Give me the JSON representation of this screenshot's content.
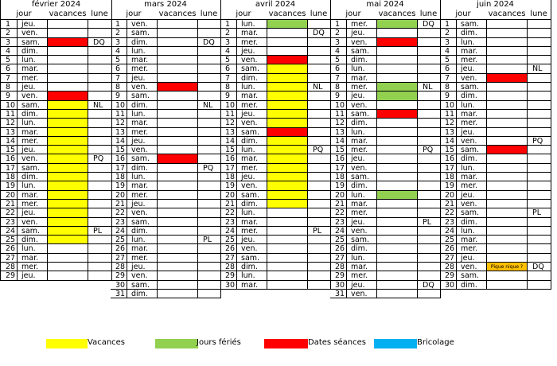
{
  "headers": {
    "jour": "jour",
    "vacances": "vacances",
    "lune": "lune"
  },
  "colors": {
    "vacances": "#ffff00",
    "feries": "#92d050",
    "seances": "#ff0000",
    "bricolage": "#00b0f0",
    "pique": "#ffc000"
  },
  "legend": [
    {
      "label": "Vacances",
      "color": "#ffff00"
    },
    {
      "label": "Jours fériés",
      "color": "#92d050"
    },
    {
      "label": "Dates séances",
      "color": "#ff0000"
    },
    {
      "label": "Bricolage",
      "color": "#00b0f0"
    }
  ],
  "months": [
    {
      "title": "février 2024",
      "rows": [
        {
          "n": "1",
          "d": "jeu.",
          "v": "",
          "l": ""
        },
        {
          "n": "2",
          "d": "ven.",
          "v": "",
          "l": ""
        },
        {
          "n": "3",
          "d": "sam.",
          "v": "seance",
          "l": "DQ"
        },
        {
          "n": "4",
          "d": "dim.",
          "v": "",
          "l": ""
        },
        {
          "n": "5",
          "d": "lun.",
          "v": "",
          "l": ""
        },
        {
          "n": "6",
          "d": "mar.",
          "v": "",
          "l": ""
        },
        {
          "n": "7",
          "d": "mer.",
          "v": "",
          "l": ""
        },
        {
          "n": "8",
          "d": "jeu.",
          "v": "",
          "l": ""
        },
        {
          "n": "9",
          "d": "ven.",
          "v": "seance",
          "l": ""
        },
        {
          "n": "10",
          "d": "sam.",
          "v": "vacances",
          "l": "NL"
        },
        {
          "n": "11",
          "d": "dim.",
          "v": "vacances",
          "l": ""
        },
        {
          "n": "12",
          "d": "lun.",
          "v": "vacances",
          "l": ""
        },
        {
          "n": "13",
          "d": "mar.",
          "v": "vacances",
          "l": ""
        },
        {
          "n": "14",
          "d": "mer.",
          "v": "vacances",
          "l": ""
        },
        {
          "n": "15",
          "d": "jeu.",
          "v": "vacances",
          "l": ""
        },
        {
          "n": "16",
          "d": "ven.",
          "v": "vacances",
          "l": "PQ"
        },
        {
          "n": "17",
          "d": "sam.",
          "v": "vacances",
          "l": ""
        },
        {
          "n": "18",
          "d": "dim.",
          "v": "vacances",
          "l": ""
        },
        {
          "n": "19",
          "d": "lun.",
          "v": "vacances",
          "l": ""
        },
        {
          "n": "20",
          "d": "mar.",
          "v": "vacances",
          "l": ""
        },
        {
          "n": "21",
          "d": "mer.",
          "v": "vacances",
          "l": ""
        },
        {
          "n": "22",
          "d": "jeu.",
          "v": "vacances",
          "l": ""
        },
        {
          "n": "23",
          "d": "ven.",
          "v": "vacances",
          "l": ""
        },
        {
          "n": "24",
          "d": "sam.",
          "v": "vacances",
          "l": "PL"
        },
        {
          "n": "25",
          "d": "dim.",
          "v": "vacances",
          "l": ""
        },
        {
          "n": "26",
          "d": "lun.",
          "v": "",
          "l": ""
        },
        {
          "n": "27",
          "d": "mar.",
          "v": "",
          "l": ""
        },
        {
          "n": "28",
          "d": "mer.",
          "v": "",
          "l": ""
        },
        {
          "n": "29",
          "d": "jeu.",
          "v": "",
          "l": ""
        }
      ]
    },
    {
      "title": "mars 2024",
      "rows": [
        {
          "n": "1",
          "d": "ven.",
          "v": "",
          "l": ""
        },
        {
          "n": "2",
          "d": "sam.",
          "v": "",
          "l": ""
        },
        {
          "n": "3",
          "d": "dim.",
          "v": "",
          "l": "DQ"
        },
        {
          "n": "4",
          "d": "lun.",
          "v": "",
          "l": ""
        },
        {
          "n": "5",
          "d": "mar.",
          "v": "",
          "l": ""
        },
        {
          "n": "6",
          "d": "mer.",
          "v": "",
          "l": ""
        },
        {
          "n": "7",
          "d": "jeu.",
          "v": "",
          "l": ""
        },
        {
          "n": "8",
          "d": "ven.",
          "v": "seance",
          "l": ""
        },
        {
          "n": "9",
          "d": "sam.",
          "v": "",
          "l": ""
        },
        {
          "n": "10",
          "d": "dim.",
          "v": "",
          "l": "NL"
        },
        {
          "n": "11",
          "d": "lun.",
          "v": "",
          "l": ""
        },
        {
          "n": "12",
          "d": "mar.",
          "v": "",
          "l": ""
        },
        {
          "n": "13",
          "d": "mer.",
          "v": "",
          "l": ""
        },
        {
          "n": "14",
          "d": "jeu.",
          "v": "",
          "l": ""
        },
        {
          "n": "15",
          "d": "ven.",
          "v": "",
          "l": ""
        },
        {
          "n": "16",
          "d": "sam.",
          "v": "seance",
          "l": ""
        },
        {
          "n": "17",
          "d": "dim.",
          "v": "",
          "l": "PQ"
        },
        {
          "n": "18",
          "d": "lun.",
          "v": "",
          "l": ""
        },
        {
          "n": "19",
          "d": "mar.",
          "v": "",
          "l": ""
        },
        {
          "n": "20",
          "d": "mer.",
          "v": "",
          "l": ""
        },
        {
          "n": "21",
          "d": "jeu.",
          "v": "",
          "l": ""
        },
        {
          "n": "22",
          "d": "ven.",
          "v": "",
          "l": ""
        },
        {
          "n": "23",
          "d": "sam.",
          "v": "",
          "l": ""
        },
        {
          "n": "24",
          "d": "dim.",
          "v": "",
          "l": ""
        },
        {
          "n": "25",
          "d": "lun.",
          "v": "",
          "l": "PL"
        },
        {
          "n": "26",
          "d": "mar.",
          "v": "",
          "l": ""
        },
        {
          "n": "27",
          "d": "mer.",
          "v": "",
          "l": ""
        },
        {
          "n": "28",
          "d": "jeu.",
          "v": "",
          "l": ""
        },
        {
          "n": "29",
          "d": "ven.",
          "v": "",
          "l": ""
        },
        {
          "n": "30",
          "d": "sam.",
          "v": "",
          "l": ""
        },
        {
          "n": "31",
          "d": "dim.",
          "v": "",
          "l": ""
        }
      ]
    },
    {
      "title": "avril 2024",
      "rows": [
        {
          "n": "1",
          "d": "lun.",
          "v": "ferie",
          "l": ""
        },
        {
          "n": "2",
          "d": "mar.",
          "v": "",
          "l": "DQ"
        },
        {
          "n": "3",
          "d": "mer.",
          "v": "",
          "l": ""
        },
        {
          "n": "4",
          "d": "jeu.",
          "v": "",
          "l": ""
        },
        {
          "n": "5",
          "d": "ven.",
          "v": "seance",
          "l": ""
        },
        {
          "n": "6",
          "d": "sam.",
          "v": "vacances",
          "l": ""
        },
        {
          "n": "7",
          "d": "dim.",
          "v": "vacances",
          "l": ""
        },
        {
          "n": "8",
          "d": "lun.",
          "v": "vacances",
          "l": "NL"
        },
        {
          "n": "9",
          "d": "mar.",
          "v": "vacances",
          "l": ""
        },
        {
          "n": "10",
          "d": "mer.",
          "v": "vacances",
          "l": ""
        },
        {
          "n": "11",
          "d": "jeu.",
          "v": "vacances",
          "l": ""
        },
        {
          "n": "12",
          "d": "ven.",
          "v": "vacances",
          "l": ""
        },
        {
          "n": "13",
          "d": "sam.",
          "v": "seance",
          "l": ""
        },
        {
          "n": "14",
          "d": "dim.",
          "v": "vacances",
          "l": ""
        },
        {
          "n": "15",
          "d": "lun.",
          "v": "vacances",
          "l": "PQ"
        },
        {
          "n": "16",
          "d": "mar.",
          "v": "vacances",
          "l": ""
        },
        {
          "n": "17",
          "d": "mer.",
          "v": "vacances",
          "l": ""
        },
        {
          "n": "18",
          "d": "jeu.",
          "v": "vacances",
          "l": ""
        },
        {
          "n": "19",
          "d": "ven.",
          "v": "vacances",
          "l": ""
        },
        {
          "n": "20",
          "d": "sam.",
          "v": "vacances",
          "l": ""
        },
        {
          "n": "21",
          "d": "dim.",
          "v": "vacances",
          "l": ""
        },
        {
          "n": "22",
          "d": "lun.",
          "v": "",
          "l": ""
        },
        {
          "n": "23",
          "d": "mar.",
          "v": "",
          "l": ""
        },
        {
          "n": "24",
          "d": "mer.",
          "v": "",
          "l": "PL"
        },
        {
          "n": "25",
          "d": "jeu.",
          "v": "",
          "l": ""
        },
        {
          "n": "26",
          "d": "ven.",
          "v": "",
          "l": ""
        },
        {
          "n": "27",
          "d": "sam.",
          "v": "",
          "l": ""
        },
        {
          "n": "28",
          "d": "dim.",
          "v": "",
          "l": ""
        },
        {
          "n": "29",
          "d": "lun.",
          "v": "",
          "l": ""
        },
        {
          "n": "30",
          "d": "mar.",
          "v": "",
          "l": ""
        }
      ]
    },
    {
      "title": "mai 2024",
      "rows": [
        {
          "n": "1",
          "d": "mer.",
          "v": "ferie",
          "l": "DQ"
        },
        {
          "n": "2",
          "d": "jeu.",
          "v": "",
          "l": ""
        },
        {
          "n": "3",
          "d": "ven.",
          "v": "seance",
          "l": ""
        },
        {
          "n": "4",
          "d": "sam.",
          "v": "",
          "l": ""
        },
        {
          "n": "5",
          "d": "dim.",
          "v": "",
          "l": ""
        },
        {
          "n": "6",
          "d": "lun.",
          "v": "",
          "l": ""
        },
        {
          "n": "7",
          "d": "mar.",
          "v": "",
          "l": ""
        },
        {
          "n": "8",
          "d": "mer.",
          "v": "ferie",
          "l": "NL"
        },
        {
          "n": "9",
          "d": "jeu.",
          "v": "ferie",
          "l": ""
        },
        {
          "n": "10",
          "d": "ven.",
          "v": "",
          "l": ""
        },
        {
          "n": "11",
          "d": "sam.",
          "v": "seance",
          "l": ""
        },
        {
          "n": "12",
          "d": "dim.",
          "v": "",
          "l": ""
        },
        {
          "n": "13",
          "d": "lun.",
          "v": "",
          "l": ""
        },
        {
          "n": "14",
          "d": "mar.",
          "v": "",
          "l": ""
        },
        {
          "n": "15",
          "d": "mer.",
          "v": "",
          "l": "PQ"
        },
        {
          "n": "16",
          "d": "jeu.",
          "v": "",
          "l": ""
        },
        {
          "n": "17",
          "d": "ven.",
          "v": "",
          "l": ""
        },
        {
          "n": "18",
          "d": "sam.",
          "v": "",
          "l": ""
        },
        {
          "n": "19",
          "d": "dim.",
          "v": "",
          "l": ""
        },
        {
          "n": "20",
          "d": "lun.",
          "v": "ferie",
          "l": ""
        },
        {
          "n": "21",
          "d": "mar.",
          "v": "",
          "l": ""
        },
        {
          "n": "22",
          "d": "mer.",
          "v": "",
          "l": ""
        },
        {
          "n": "23",
          "d": "jeu.",
          "v": "",
          "l": "PL"
        },
        {
          "n": "24",
          "d": "ven.",
          "v": "",
          "l": ""
        },
        {
          "n": "25",
          "d": "sam.",
          "v": "",
          "l": ""
        },
        {
          "n": "26",
          "d": "dim.",
          "v": "",
          "l": ""
        },
        {
          "n": "27",
          "d": "lun.",
          "v": "",
          "l": ""
        },
        {
          "n": "28",
          "d": "mar.",
          "v": "",
          "l": ""
        },
        {
          "n": "29",
          "d": "mer.",
          "v": "",
          "l": ""
        },
        {
          "n": "30",
          "d": "jeu.",
          "v": "",
          "l": "DQ"
        },
        {
          "n": "31",
          "d": "ven.",
          "v": "",
          "l": ""
        }
      ]
    },
    {
      "title": "juin 2024",
      "rows": [
        {
          "n": "1",
          "d": "sam.",
          "v": "",
          "l": ""
        },
        {
          "n": "2",
          "d": "dim.",
          "v": "",
          "l": ""
        },
        {
          "n": "3",
          "d": "lun.",
          "v": "",
          "l": ""
        },
        {
          "n": "4",
          "d": "mar.",
          "v": "",
          "l": ""
        },
        {
          "n": "5",
          "d": "mer.",
          "v": "",
          "l": ""
        },
        {
          "n": "6",
          "d": "jeu.",
          "v": "",
          "l": "NL"
        },
        {
          "n": "7",
          "d": "ven.",
          "v": "seance",
          "l": ""
        },
        {
          "n": "8",
          "d": "sam.",
          "v": "",
          "l": ""
        },
        {
          "n": "9",
          "d": "dim.",
          "v": "",
          "l": ""
        },
        {
          "n": "10",
          "d": "lun.",
          "v": "",
          "l": ""
        },
        {
          "n": "11",
          "d": "mar.",
          "v": "",
          "l": ""
        },
        {
          "n": "12",
          "d": "mer.",
          "v": "",
          "l": ""
        },
        {
          "n": "13",
          "d": "jeu.",
          "v": "",
          "l": ""
        },
        {
          "n": "14",
          "d": "ven.",
          "v": "",
          "l": "PQ"
        },
        {
          "n": "15",
          "d": "sam.",
          "v": "seance",
          "l": ""
        },
        {
          "n": "16",
          "d": "dim.",
          "v": "",
          "l": ""
        },
        {
          "n": "17",
          "d": "lun.",
          "v": "",
          "l": ""
        },
        {
          "n": "18",
          "d": "mar.",
          "v": "",
          "l": ""
        },
        {
          "n": "19",
          "d": "mer.",
          "v": "",
          "l": ""
        },
        {
          "n": "20",
          "d": "jeu.",
          "v": "",
          "l": ""
        },
        {
          "n": "21",
          "d": "ven.",
          "v": "",
          "l": ""
        },
        {
          "n": "22",
          "d": "sam.",
          "v": "",
          "l": "PL"
        },
        {
          "n": "23",
          "d": "dim.",
          "v": "",
          "l": ""
        },
        {
          "n": "24",
          "d": "lun.",
          "v": "",
          "l": ""
        },
        {
          "n": "25",
          "d": "mar.",
          "v": "",
          "l": ""
        },
        {
          "n": "26",
          "d": "mer.",
          "v": "",
          "l": ""
        },
        {
          "n": "27",
          "d": "jeu.",
          "v": "",
          "l": ""
        },
        {
          "n": "28",
          "d": "ven.",
          "v": "pique",
          "t": "Pique nique ?",
          "l": "DQ"
        },
        {
          "n": "29",
          "d": "sam.",
          "v": "",
          "l": ""
        },
        {
          "n": "30",
          "d": "dim.",
          "v": "",
          "l": ""
        }
      ]
    }
  ]
}
